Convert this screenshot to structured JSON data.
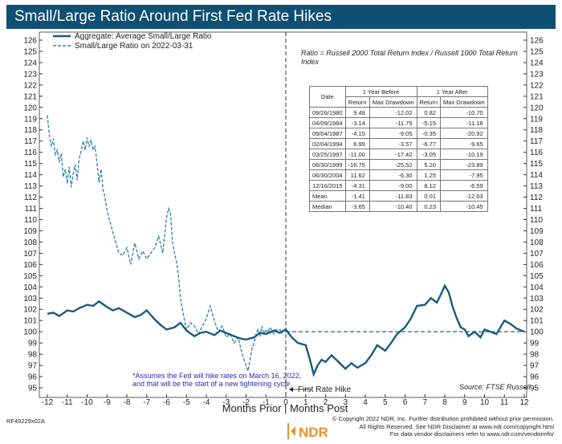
{
  "chart_data": {
    "type": "line",
    "title": "Small/Large Ratio Around First Fed Rate Hikes",
    "xlabel": "Months Prior | Months Post",
    "x_ticks": [
      "-12",
      "-11",
      "-10",
      "-9",
      "-8",
      "-7",
      "-6",
      "-5",
      "-4",
      "-3",
      "-2",
      "-1",
      "0",
      "1",
      "2",
      "3",
      "4",
      "5",
      "6",
      "7",
      "8",
      "9",
      "10",
      "11",
      "12"
    ],
    "y_ticks": [
      "126",
      "125",
      "124",
      "123",
      "122",
      "121",
      "120",
      "119",
      "118",
      "117",
      "116",
      "115",
      "114",
      "113",
      "112",
      "111",
      "110",
      "109",
      "108",
      "107",
      "106",
      "105",
      "104",
      "103",
      "102",
      "101",
      "100",
      "99",
      "98",
      "97",
      "96",
      "95"
    ],
    "xlim": [
      -12,
      12
    ],
    "ylim": [
      94.5,
      126.8
    ],
    "annotation_rate_hike": "First Rate Hike",
    "reference_line": 100,
    "note": [
      "*Assumes the Fed will hike rates on March 16, 2022,",
      "and that will be the start of a new tightening cycle."
    ],
    "ratio_definition": [
      "Ratio = Russell 2000 Total Return Index / Russell 1000 Total Return",
      "Index"
    ],
    "source": "Source:   FTSE Russell",
    "series": [
      {
        "name": "Aggregate: Average Small/Large Ratio",
        "color": "#1a5a80",
        "style": "solid",
        "x": [
          -12,
          -11.7,
          -11.4,
          -11,
          -10.7,
          -10.4,
          -10,
          -9.7,
          -9.4,
          -9,
          -8.7,
          -8.4,
          -8,
          -7.6,
          -7.3,
          -7,
          -6.6,
          -6.3,
          -6,
          -5.6,
          -5.3,
          -5,
          -4.6,
          -4.3,
          -4,
          -3.6,
          -3.3,
          -3,
          -2.6,
          -2.3,
          -2,
          -1.6,
          -1.3,
          -1,
          -0.6,
          -0.3,
          0,
          0.3,
          0.6,
          1,
          1.2,
          1.4,
          1.6,
          1.8,
          2,
          2.3,
          2.6,
          3,
          3.3,
          3.6,
          4,
          4.3,
          4.6,
          5,
          5.3,
          5.6,
          6,
          6.3,
          6.6,
          7,
          7.3,
          7.6,
          7.8,
          8,
          8.2,
          8.4,
          8.6,
          8.8,
          9,
          9.2,
          9.5,
          9.8,
          10,
          10.3,
          10.6,
          11,
          11.3,
          11.6,
          12
        ],
        "values": [
          101.6,
          101.7,
          101.4,
          101.9,
          101.8,
          102.1,
          102.4,
          102.3,
          102.7,
          102.2,
          101.9,
          102.1,
          101.7,
          101.3,
          101.5,
          101.9,
          101.1,
          100.6,
          100.2,
          100.4,
          100.8,
          100.1,
          99.6,
          99.9,
          100.0,
          99.7,
          100.1,
          99.9,
          99.6,
          99.4,
          99.3,
          99.5,
          99.9,
          99.8,
          100.1,
          99.9,
          100.2,
          99.5,
          99.0,
          98.8,
          97.6,
          96.2,
          97.0,
          97.5,
          97.3,
          97.9,
          97.4,
          96.7,
          97.2,
          96.8,
          97.2,
          97.9,
          98.8,
          98.3,
          99.0,
          99.8,
          100.4,
          101.2,
          102.3,
          102.4,
          103.0,
          102.6,
          103.3,
          104.1,
          103.5,
          102.2,
          101.2,
          100.4,
          100.2,
          99.6,
          100.0,
          99.5,
          100.2,
          100.0,
          99.8,
          101.0,
          100.7,
          100.3,
          100.0
        ]
      },
      {
        "name": "Small/Large Ratio on 2022-03-31",
        "color": "#3a85b0",
        "style": "dashed",
        "x": [
          -12,
          -11.9,
          -11.8,
          -11.7,
          -11.6,
          -11.5,
          -11.4,
          -11.3,
          -11.2,
          -11.1,
          -11,
          -10.9,
          -10.8,
          -10.7,
          -10.6,
          -10.5,
          -10.4,
          -10.3,
          -10.2,
          -10.1,
          -10,
          -9.9,
          -9.8,
          -9.7,
          -9.6,
          -9.5,
          -9.4,
          -9.3,
          -9.2,
          -9.1,
          -9,
          -8.8,
          -8.6,
          -8.4,
          -8.2,
          -8,
          -7.8,
          -7.6,
          -7.4,
          -7.2,
          -7,
          -6.8,
          -6.6,
          -6.4,
          -6.2,
          -6,
          -5.9,
          -5.8,
          -5.7,
          -5.6,
          -5.5,
          -5.4,
          -5.3,
          -5.2,
          -5.1,
          -5,
          -4.8,
          -4.6,
          -4.4,
          -4.2,
          -4,
          -3.8,
          -3.6,
          -3.4,
          -3.2,
          -3,
          -2.8,
          -2.6,
          -2.4,
          -2.2,
          -2,
          -1.9,
          -1.8,
          -1.7,
          -1.6,
          -1.5,
          -1.4,
          -1.3,
          -1.2,
          -1.1,
          -1,
          -0.9,
          -0.8,
          -0.7,
          -0.6,
          -0.5,
          -0.4,
          -0.3,
          -0.2,
          -0.1,
          0
        ],
        "values": [
          119.3,
          117.5,
          116.5,
          117.2,
          115.8,
          116.2,
          115.1,
          115.9,
          113.8,
          114.5,
          113.2,
          114.7,
          112.9,
          114.1,
          114.9,
          113.5,
          115.4,
          116.1,
          117.0,
          116.2,
          117.3,
          116.5,
          117.1,
          116.2,
          116.5,
          115.0,
          113.3,
          114.5,
          112.7,
          112.0,
          110.8,
          109.5,
          108.2,
          107.0,
          106.8,
          107.5,
          106.0,
          107.9,
          106.5,
          107.2,
          106.5,
          107.0,
          107.5,
          108.5,
          107.0,
          110.2,
          111.0,
          110.5,
          108.0,
          107.0,
          106.2,
          105.0,
          103.0,
          102.0,
          101.0,
          100.2,
          100.8,
          100.5,
          99.8,
          100.5,
          101.2,
          102.3,
          101.0,
          100.0,
          100.5,
          99.5,
          99.8,
          99.0,
          99.5,
          98.0,
          97.0,
          96.5,
          97.5,
          98.5,
          99.0,
          99.8,
          100.2,
          99.6,
          100.5,
          99.8,
          100.2,
          99.9,
          100.4,
          100.1,
          99.8,
          100.3,
          100.0,
          100.2,
          99.9,
          100.1,
          100.0
        ]
      }
    ]
  },
  "table": {
    "headers": {
      "date": "Date",
      "before_group": "1 Year Before",
      "after_group": "1 Year After",
      "return": "Return",
      "max_drawdown": "Max Drawdown"
    },
    "rows": [
      {
        "date": "09/26/1980",
        "before_return": "9.48",
        "before_dd": "-12.02",
        "after_return": "0.82",
        "after_dd": "-10.70"
      },
      {
        "date": "04/09/1984",
        "before_return": "-3.14",
        "before_dd": "-11.75",
        "after_return": "-5.15",
        "after_dd": "-11.18"
      },
      {
        "date": "09/04/1987",
        "before_return": "-4.15",
        "before_dd": "-9.05",
        "after_return": "-0.35",
        "after_dd": "-20.92"
      },
      {
        "date": "02/04/1994",
        "before_return": "6.99",
        "before_dd": "-3.57",
        "after_return": "-6.77",
        "after_dd": "-9.65"
      },
      {
        "date": "03/25/1997",
        "before_return": "-11.00",
        "before_dd": "-17.42",
        "after_return": "-3.05",
        "after_dd": "-10.19"
      },
      {
        "date": "06/30/1999",
        "before_return": "-16.75",
        "before_dd": "-25.52",
        "after_return": "5.20",
        "after_dd": "-23.89"
      },
      {
        "date": "06/30/2004",
        "before_return": "11.62",
        "before_dd": "-6.30",
        "after_return": "1.25",
        "after_dd": "-7.95"
      },
      {
        "date": "12/16/2015",
        "before_return": "-4.31",
        "before_dd": "-9.00",
        "after_return": "8.12",
        "after_dd": "-6.59"
      },
      {
        "date": "Mean",
        "before_return": "-1.41",
        "before_dd": "-11.83",
        "after_return": "0.01",
        "after_dd": "-12.63"
      },
      {
        "date": "Median",
        "before_return": "-3.65",
        "before_dd": "-10.40",
        "after_return": "0.23",
        "after_dd": "-10.45"
      }
    ]
  },
  "footer": {
    "code": "RF49229x02A",
    "logo_text": "NDR",
    "lines": [
      "© Copyright 2022 NDR, Inc. Further distribution prohibited without prior permission.",
      "All Rights Reserved. See NDR Disclaimer at www.ndr.com/copyright.html",
      "For data vendor disclaimers refer to www.ndr.com/vendorinfo/"
    ]
  },
  "colors": {
    "title_bg": "#0f4f73",
    "logo": "#e8932a"
  }
}
